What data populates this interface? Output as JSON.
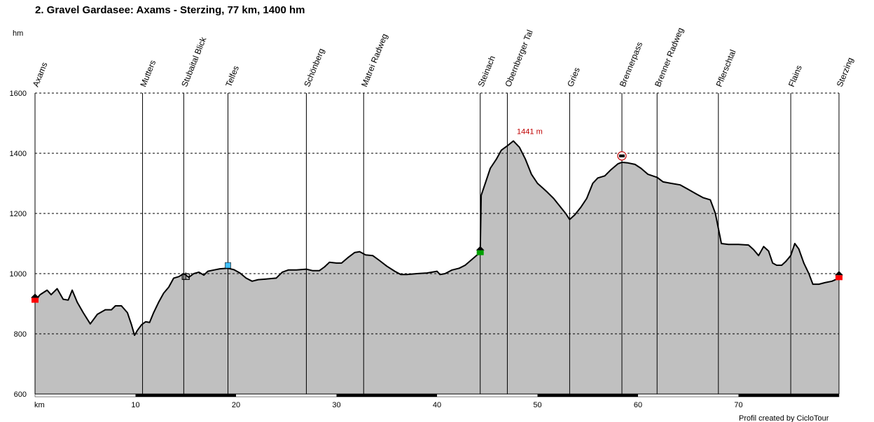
{
  "chart_data": {
    "type": "area",
    "title": "2. Gravel Gardasee: Axams - Sterzing, 77 km, 1400 hm",
    "ylabel": "hm",
    "xlabel": "km",
    "ylim": [
      600,
      1600
    ],
    "xlim": [
      0,
      80
    ],
    "yticks": [
      600,
      800,
      1000,
      1200,
      1400,
      1600
    ],
    "xticks": [
      10,
      20,
      30,
      40,
      50,
      60,
      70
    ],
    "grid": true,
    "credit": "Profil created by CicloTour",
    "max_label": "1441 m",
    "max_point": {
      "x": 47.6,
      "y": 1441
    },
    "waypoints": [
      {
        "name": "Axams",
        "x": 0.0
      },
      {
        "name": "Mutters",
        "x": 10.7
      },
      {
        "name": "Stubaital Blick",
        "x": 14.8
      },
      {
        "name": "Telfes",
        "x": 19.2
      },
      {
        "name": "Schönberg",
        "x": 27.0
      },
      {
        "name": "Matrei Radweg",
        "x": 32.7
      },
      {
        "name": "Steinach",
        "x": 44.3
      },
      {
        "name": "Obernberger Tal",
        "x": 47.0
      },
      {
        "name": "Gries",
        "x": 53.2
      },
      {
        "name": "Brennerpass",
        "x": 58.4
      },
      {
        "name": "Brenner Radweg",
        "x": 61.9
      },
      {
        "name": "Pflerschtal",
        "x": 68.0
      },
      {
        "name": "Flains",
        "x": 75.2
      },
      {
        "name": "Sterzing",
        "x": 80.0
      }
    ],
    "series": [
      {
        "values": [
          {
            "x": 0.0,
            "y": 910
          },
          {
            "x": 0.5,
            "y": 930
          },
          {
            "x": 1.2,
            "y": 945
          },
          {
            "x": 1.6,
            "y": 930
          },
          {
            "x": 2.2,
            "y": 950
          },
          {
            "x": 2.8,
            "y": 915
          },
          {
            "x": 3.3,
            "y": 912
          },
          {
            "x": 3.7,
            "y": 945
          },
          {
            "x": 4.2,
            "y": 905
          },
          {
            "x": 4.8,
            "y": 870
          },
          {
            "x": 5.5,
            "y": 833
          },
          {
            "x": 6.2,
            "y": 865
          },
          {
            "x": 7.0,
            "y": 880
          },
          {
            "x": 7.6,
            "y": 880
          },
          {
            "x": 8.0,
            "y": 893
          },
          {
            "x": 8.6,
            "y": 893
          },
          {
            "x": 9.2,
            "y": 870
          },
          {
            "x": 9.6,
            "y": 830
          },
          {
            "x": 9.9,
            "y": 795
          },
          {
            "x": 10.2,
            "y": 812
          },
          {
            "x": 10.6,
            "y": 830
          },
          {
            "x": 11.0,
            "y": 840
          },
          {
            "x": 11.4,
            "y": 838
          },
          {
            "x": 11.8,
            "y": 870
          },
          {
            "x": 12.3,
            "y": 905
          },
          {
            "x": 12.8,
            "y": 935
          },
          {
            "x": 13.3,
            "y": 955
          },
          {
            "x": 13.8,
            "y": 985
          },
          {
            "x": 14.3,
            "y": 990
          },
          {
            "x": 14.8,
            "y": 1000
          },
          {
            "x": 15.3,
            "y": 988
          },
          {
            "x": 15.8,
            "y": 1000
          },
          {
            "x": 16.3,
            "y": 1005
          },
          {
            "x": 16.8,
            "y": 995
          },
          {
            "x": 17.2,
            "y": 1008
          },
          {
            "x": 17.8,
            "y": 1012
          },
          {
            "x": 18.4,
            "y": 1016
          },
          {
            "x": 19.2,
            "y": 1018
          },
          {
            "x": 19.8,
            "y": 1013
          },
          {
            "x": 20.4,
            "y": 1002
          },
          {
            "x": 21.0,
            "y": 985
          },
          {
            "x": 21.6,
            "y": 975
          },
          {
            "x": 22.2,
            "y": 980
          },
          {
            "x": 23.0,
            "y": 982
          },
          {
            "x": 24.0,
            "y": 985
          },
          {
            "x": 24.6,
            "y": 1005
          },
          {
            "x": 25.2,
            "y": 1012
          },
          {
            "x": 26.0,
            "y": 1012
          },
          {
            "x": 27.0,
            "y": 1015
          },
          {
            "x": 27.6,
            "y": 1010
          },
          {
            "x": 28.3,
            "y": 1010
          },
          {
            "x": 28.8,
            "y": 1022
          },
          {
            "x": 29.3,
            "y": 1038
          },
          {
            "x": 30.0,
            "y": 1035
          },
          {
            "x": 30.5,
            "y": 1035
          },
          {
            "x": 31.2,
            "y": 1055
          },
          {
            "x": 31.8,
            "y": 1070
          },
          {
            "x": 32.3,
            "y": 1073
          },
          {
            "x": 32.9,
            "y": 1062
          },
          {
            "x": 33.6,
            "y": 1060
          },
          {
            "x": 34.3,
            "y": 1043
          },
          {
            "x": 35.0,
            "y": 1025
          },
          {
            "x": 35.8,
            "y": 1008
          },
          {
            "x": 36.4,
            "y": 997
          },
          {
            "x": 37.0,
            "y": 997
          },
          {
            "x": 38.0,
            "y": 1000
          },
          {
            "x": 39.0,
            "y": 1002
          },
          {
            "x": 40.0,
            "y": 1008
          },
          {
            "x": 40.3,
            "y": 997
          },
          {
            "x": 40.8,
            "y": 1000
          },
          {
            "x": 41.5,
            "y": 1012
          },
          {
            "x": 42.2,
            "y": 1018
          },
          {
            "x": 42.8,
            "y": 1028
          },
          {
            "x": 43.4,
            "y": 1045
          },
          {
            "x": 44.0,
            "y": 1062
          },
          {
            "x": 44.3,
            "y": 1070
          },
          {
            "x": 44.4,
            "y": 1260
          },
          {
            "x": 44.8,
            "y": 1300
          },
          {
            "x": 45.3,
            "y": 1350
          },
          {
            "x": 45.9,
            "y": 1380
          },
          {
            "x": 46.4,
            "y": 1410
          },
          {
            "x": 47.0,
            "y": 1425
          },
          {
            "x": 47.6,
            "y": 1441
          },
          {
            "x": 48.2,
            "y": 1420
          },
          {
            "x": 48.8,
            "y": 1380
          },
          {
            "x": 49.4,
            "y": 1330
          },
          {
            "x": 50.0,
            "y": 1300
          },
          {
            "x": 50.5,
            "y": 1285
          },
          {
            "x": 51.0,
            "y": 1270
          },
          {
            "x": 51.6,
            "y": 1250
          },
          {
            "x": 52.2,
            "y": 1225
          },
          {
            "x": 52.8,
            "y": 1200
          },
          {
            "x": 53.2,
            "y": 1180
          },
          {
            "x": 53.7,
            "y": 1195
          },
          {
            "x": 54.3,
            "y": 1220
          },
          {
            "x": 54.9,
            "y": 1250
          },
          {
            "x": 55.5,
            "y": 1300
          },
          {
            "x": 56.0,
            "y": 1318
          },
          {
            "x": 56.7,
            "y": 1325
          },
          {
            "x": 57.3,
            "y": 1345
          },
          {
            "x": 58.0,
            "y": 1365
          },
          {
            "x": 58.4,
            "y": 1370
          },
          {
            "x": 59.0,
            "y": 1368
          },
          {
            "x": 59.7,
            "y": 1363
          },
          {
            "x": 60.3,
            "y": 1350
          },
          {
            "x": 61.0,
            "y": 1330
          },
          {
            "x": 61.9,
            "y": 1320
          },
          {
            "x": 62.5,
            "y": 1305
          },
          {
            "x": 63.3,
            "y": 1300
          },
          {
            "x": 64.2,
            "y": 1295
          },
          {
            "x": 65.0,
            "y": 1280
          },
          {
            "x": 65.8,
            "y": 1265
          },
          {
            "x": 66.5,
            "y": 1252
          },
          {
            "x": 67.2,
            "y": 1245
          },
          {
            "x": 67.7,
            "y": 1200
          },
          {
            "x": 68.0,
            "y": 1150
          },
          {
            "x": 68.3,
            "y": 1100
          },
          {
            "x": 69.0,
            "y": 1097
          },
          {
            "x": 70.0,
            "y": 1097
          },
          {
            "x": 71.0,
            "y": 1095
          },
          {
            "x": 71.5,
            "y": 1080
          },
          {
            "x": 72.0,
            "y": 1060
          },
          {
            "x": 72.5,
            "y": 1090
          },
          {
            "x": 73.0,
            "y": 1075
          },
          {
            "x": 73.4,
            "y": 1035
          },
          {
            "x": 73.8,
            "y": 1028
          },
          {
            "x": 74.3,
            "y": 1028
          },
          {
            "x": 74.7,
            "y": 1040
          },
          {
            "x": 75.2,
            "y": 1060
          },
          {
            "x": 75.6,
            "y": 1100
          },
          {
            "x": 76.0,
            "y": 1082
          },
          {
            "x": 76.5,
            "y": 1035
          },
          {
            "x": 77.0,
            "y": 1000
          },
          {
            "x": 77.4,
            "y": 965
          },
          {
            "x": 78.0,
            "y": 965
          },
          {
            "x": 78.6,
            "y": 970
          },
          {
            "x": 79.3,
            "y": 975
          },
          {
            "x": 80.0,
            "y": 985
          }
        ]
      }
    ],
    "markers": [
      {
        "name": "start-marker",
        "x": 0.0,
        "y": 915,
        "color": "#ff0000",
        "cap": "#000000"
      },
      {
        "name": "bike-shop-marker",
        "x": 15.0,
        "y": 990,
        "color": "#000000"
      },
      {
        "name": "info-marker",
        "x": 19.2,
        "y": 1023,
        "color": "#40c0ff"
      },
      {
        "name": "rail-marker",
        "x": 44.3,
        "y": 1073,
        "color": "#00a000",
        "cap": "#000000"
      },
      {
        "name": "hotel-marker",
        "x": 58.4,
        "y": 1382,
        "color": "#ffffff"
      },
      {
        "name": "finish-marker",
        "x": 80.0,
        "y": 990,
        "color": "#ff0000",
        "cap": "#000000"
      }
    ],
    "colors": {
      "fill": "#c0c0c0",
      "line": "#000000",
      "grid": "#000000",
      "max_label": "#c00000",
      "axis_bar": "#000000"
    }
  }
}
